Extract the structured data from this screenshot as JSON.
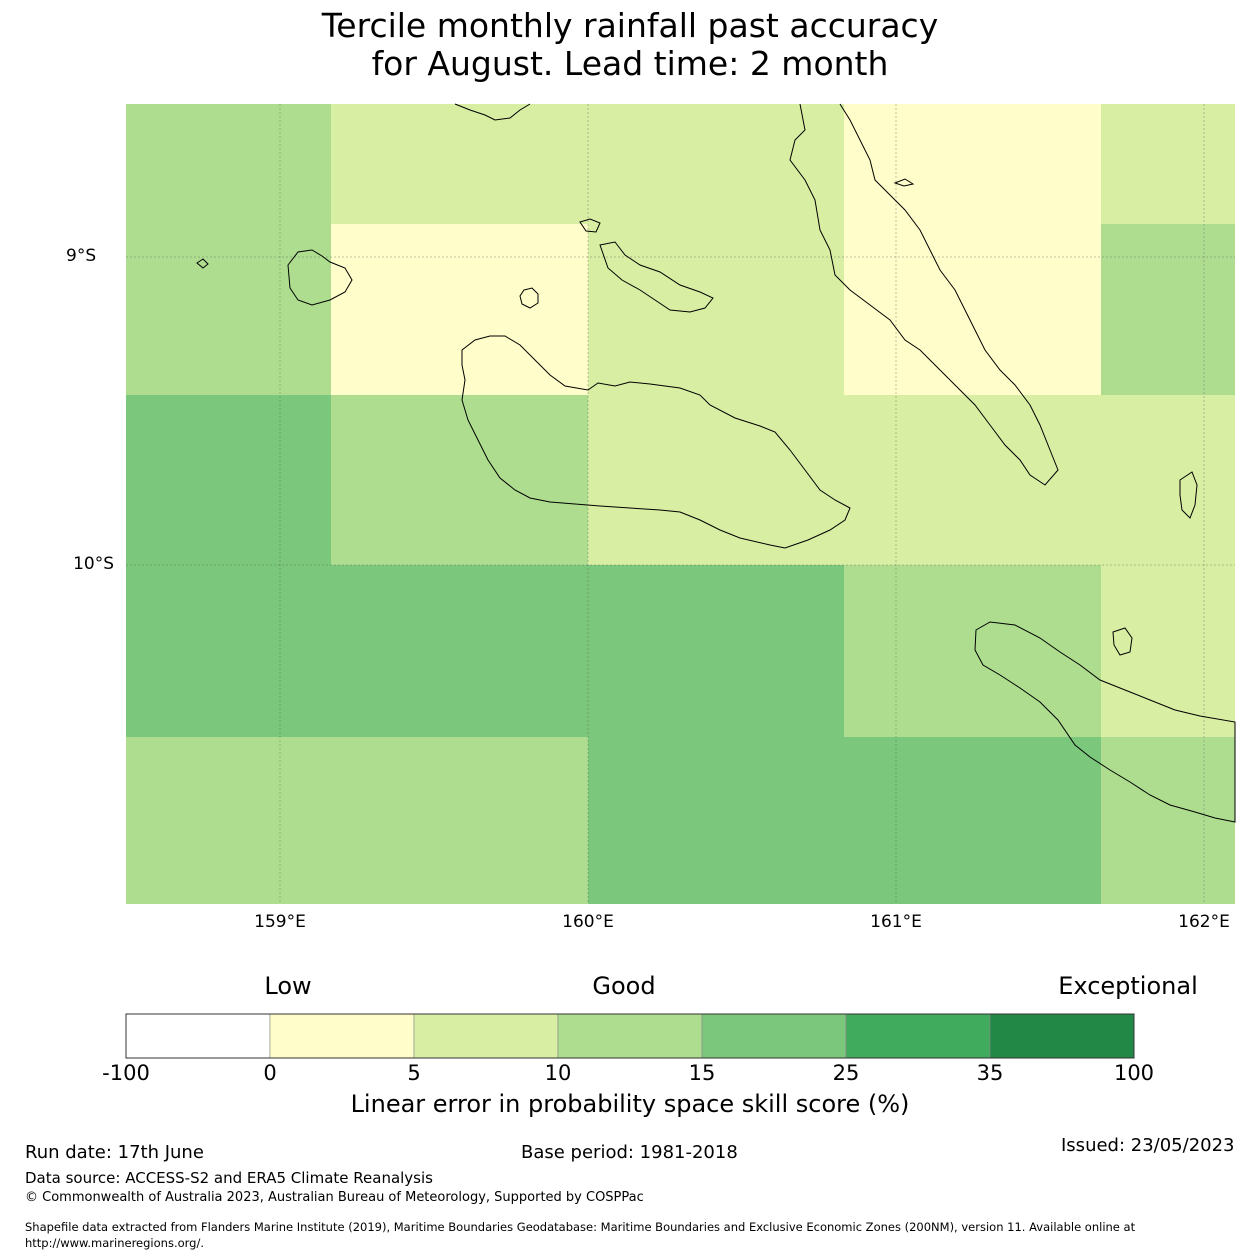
{
  "title": {
    "line1": "Tercile monthly rainfall past accuracy",
    "line2": "for August. Lead time: 2 month"
  },
  "map": {
    "lat_labels": [
      "9°S",
      "10°S"
    ],
    "lon_labels": [
      "159°E",
      "160°E",
      "161°E",
      "162°E"
    ],
    "extent": {
      "lon": [
        158.5,
        162.1
      ],
      "lat": [
        -8.5,
        -11.1
      ]
    },
    "colors": {
      "0-5": "#fffdc9",
      "5-10": "#d8eea3",
      "10-15": "#aedd8f",
      "15-25": "#7bc77b",
      "grid": "#555555"
    }
  },
  "colorbar": {
    "qualitative": {
      "low": "Low",
      "good": "Good",
      "exceptional": "Exceptional"
    },
    "ticks": [
      "-100",
      "0",
      "5",
      "10",
      "15",
      "25",
      "35",
      "100"
    ],
    "colors": [
      "#ffffff",
      "#fffdc9",
      "#d8eea3",
      "#aedd8f",
      "#7bc77b",
      "#40aa5d",
      "#228845"
    ],
    "label": "Linear error in probability space skill score (%)"
  },
  "footer": {
    "run_date": "Run date: 17th June",
    "base_period": "Base period: 1981-2018",
    "issued": "Issued: 23/05/2023",
    "data_source": "Data source: ACCESS-S2 and ERA5 Climate Reanalysis",
    "copyright": "© Commonwealth of Australia 2023, Australian Bureau of Meteorology, Supported by COSPPac",
    "shapefile_line1": "Shapefile data extracted from Flanders Marine Institute (2019), Maritime Boundaries Geodatabase: Maritime Boundaries and Exclusive Economic Zones (200NM), version 11. Available online at",
    "shapefile_line2": "http://www.marineregions.org/."
  }
}
